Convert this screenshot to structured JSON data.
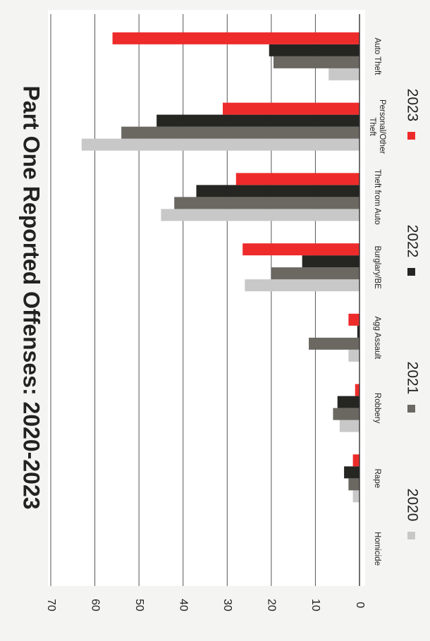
{
  "chart_data": {
    "type": "bar",
    "orientation": "horizontal (page rotated 90 degrees clockwise)",
    "title": "Part One Reported Offenses: 2020-2023",
    "categories": [
      "Homicide",
      "Rape",
      "Robbery",
      "Agg Assault",
      "Burglary/BE",
      "Theft from Auto",
      "Personal/Other Theft",
      "Auto Theft"
    ],
    "series": [
      {
        "name": "2020",
        "color": "#c8c8c8",
        "values": [
          0,
          1.5,
          4.5,
          2.5,
          26,
          45,
          63,
          7
        ]
      },
      {
        "name": "2021",
        "color": "#6b6862",
        "values": [
          0,
          2.5,
          6,
          11.5,
          20,
          42,
          54,
          19.5
        ]
      },
      {
        "name": "2022",
        "color": "#252522",
        "values": [
          0,
          3.5,
          5,
          0.5,
          13,
          37,
          46,
          20.5
        ]
      },
      {
        "name": "2023",
        "color": "#ee2b2b",
        "values": [
          0,
          1.5,
          1,
          2.5,
          26.5,
          28,
          31,
          56
        ]
      }
    ],
    "ylim": [
      0,
      70
    ],
    "yticks": [
      "0",
      "10",
      "20",
      "30",
      "40",
      "50",
      "60",
      "70"
    ],
    "grid": true,
    "legend_position": "bottom"
  }
}
